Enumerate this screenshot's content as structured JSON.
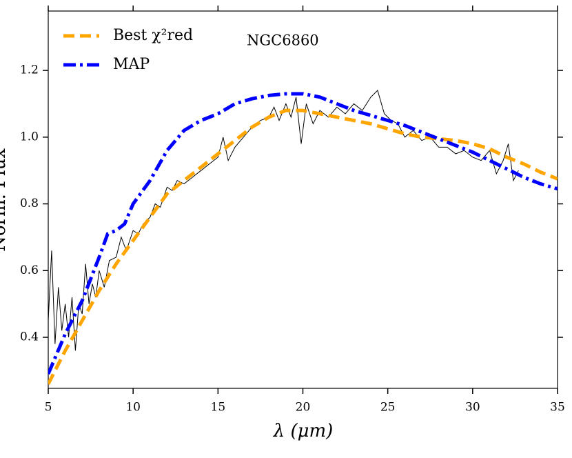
{
  "chart_data": {
    "type": "line",
    "xlabel": "λ (μm)",
    "ylabel": "Norm. Flux",
    "annotation": "NGC6860",
    "xlim": [
      5,
      35
    ],
    "ylim": [
      0.247,
      1.378
    ],
    "xticks": [
      5,
      10,
      15,
      20,
      25,
      30,
      35
    ],
    "yticks": [
      0.4,
      0.6,
      0.8,
      {
        "value": 1.0,
        "label": "1.0"
      },
      1.2
    ],
    "legend": "upper left",
    "series": [
      {
        "name": null,
        "color": "#000000",
        "style": "solid",
        "width": 1,
        "x": [
          5,
          5.2,
          5.4,
          5.6,
          5.8,
          6,
          6.2,
          6.4,
          6.6,
          6.8,
          7,
          7.2,
          7.4,
          7.6,
          7.8,
          8,
          8.3,
          8.6,
          9,
          9.3,
          9.6,
          10,
          10.3,
          10.6,
          11,
          11.3,
          11.6,
          12,
          12.3,
          12.6,
          13,
          13.5,
          14,
          14.5,
          15,
          15.3,
          15.6,
          16,
          16.5,
          17,
          17.5,
          18,
          18.3,
          18.6,
          19,
          19.3,
          19.6,
          19.9,
          20.2,
          20.6,
          21,
          21.5,
          22,
          22.5,
          23,
          23.5,
          24,
          24.4,
          24.8,
          25.2,
          25.6,
          26,
          26.5,
          27,
          27.5,
          28,
          28.5,
          29,
          29.5,
          30,
          30.5,
          31,
          31.4,
          31.8,
          32.1,
          32.4,
          32.7
        ],
        "values": [
          0.45,
          0.66,
          0.38,
          0.55,
          0.42,
          0.5,
          0.4,
          0.52,
          0.36,
          0.5,
          0.47,
          0.62,
          0.5,
          0.56,
          0.52,
          0.6,
          0.55,
          0.63,
          0.64,
          0.7,
          0.66,
          0.72,
          0.71,
          0.74,
          0.76,
          0.8,
          0.79,
          0.85,
          0.84,
          0.87,
          0.86,
          0.88,
          0.9,
          0.92,
          0.94,
          1.0,
          0.93,
          0.97,
          1.0,
          1.03,
          1.05,
          1.06,
          1.09,
          1.05,
          1.1,
          1.06,
          1.12,
          0.98,
          1.1,
          1.04,
          1.08,
          1.06,
          1.09,
          1.07,
          1.1,
          1.08,
          1.12,
          1.14,
          1.07,
          1.05,
          1.04,
          1.0,
          1.02,
          0.99,
          1.0,
          0.97,
          0.97,
          0.95,
          0.96,
          0.94,
          0.93,
          0.96,
          0.89,
          0.93,
          0.98,
          0.87,
          0.9
        ]
      },
      {
        "name": "Best χ²red",
        "color": "#ffa500",
        "style": "dashed",
        "width": 5,
        "x": [
          5,
          6,
          7,
          8,
          9,
          10,
          11,
          12,
          13,
          14,
          15,
          16,
          17,
          18,
          19,
          20,
          21,
          22,
          23,
          24,
          25,
          26,
          27,
          28,
          29,
          30,
          31,
          32,
          33,
          34,
          35
        ],
        "values": [
          0.26,
          0.36,
          0.45,
          0.54,
          0.62,
          0.69,
          0.76,
          0.83,
          0.87,
          0.91,
          0.95,
          0.99,
          1.03,
          1.06,
          1.08,
          1.08,
          1.07,
          1.06,
          1.05,
          1.04,
          1.025,
          1.01,
          1.0,
          0.995,
          0.99,
          0.98,
          0.965,
          0.94,
          0.92,
          0.895,
          0.875
        ]
      },
      {
        "name": "MAP",
        "color": "#0000ff",
        "style": "dashdot",
        "width": 5,
        "x": [
          5,
          6,
          7,
          8,
          8.5,
          9,
          9.5,
          10,
          11,
          12,
          13,
          14,
          15,
          16,
          17,
          18,
          19,
          20,
          21,
          22,
          23,
          24,
          25,
          26,
          27,
          28,
          29,
          30,
          31,
          32,
          33,
          34,
          35
        ],
        "values": [
          0.29,
          0.41,
          0.51,
          0.64,
          0.71,
          0.72,
          0.74,
          0.8,
          0.87,
          0.96,
          1.02,
          1.05,
          1.07,
          1.1,
          1.115,
          1.125,
          1.13,
          1.13,
          1.12,
          1.1,
          1.08,
          1.065,
          1.05,
          1.035,
          1.015,
          0.995,
          0.975,
          0.955,
          0.93,
          0.905,
          0.88,
          0.86,
          0.845
        ]
      }
    ]
  }
}
